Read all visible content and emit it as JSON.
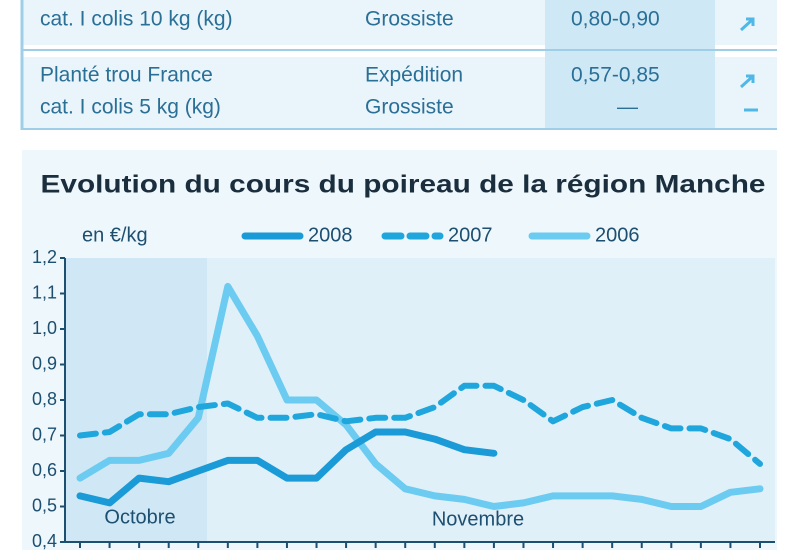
{
  "table": {
    "rows": [
      [
        [
          "cat. I colis 10 kg (kg)"
        ],
        [
          "Grossiste"
        ],
        [
          "0,80-0,90"
        ]
      ],
      [
        [
          "Planté trou France",
          "cat. I colis 5 kg (kg)"
        ],
        [
          "Expédition",
          "Grossiste"
        ],
        [
          "0,57-0,85",
          "—"
        ]
      ]
    ]
  },
  "chart_data": {
    "type": "line",
    "title": "Evolution du cours du poireau de la région Manche",
    "ylabel": "en €/kg",
    "categories": [
      null,
      null,
      null,
      null,
      null,
      null,
      null,
      null,
      null,
      null,
      null,
      null,
      null,
      null,
      null,
      null,
      null,
      null,
      null,
      null,
      null,
      null,
      null,
      null
    ],
    "series": [
      {
        "name": "2008",
        "color": "#1a9ad6",
        "dash": false,
        "values": [
          0.53,
          0.51,
          0.58,
          0.57,
          0.6,
          0.63,
          0.63,
          0.58,
          0.58,
          0.66,
          0.71,
          0.71,
          0.69,
          0.66,
          0.65,
          null,
          null,
          null,
          null,
          null,
          null,
          null,
          null,
          null
        ]
      },
      {
        "name": "2007",
        "color": "#1fa6dc",
        "dash": true,
        "values": [
          0.7,
          0.71,
          0.76,
          0.76,
          0.78,
          0.79,
          0.75,
          0.75,
          0.76,
          0.74,
          0.75,
          0.75,
          0.78,
          0.84,
          0.84,
          0.8,
          0.74,
          0.78,
          0.8,
          0.75,
          0.72,
          0.72,
          0.69,
          0.62
        ]
      },
      {
        "name": "2006",
        "color": "#6ccbf0",
        "dash": false,
        "values": [
          0.58,
          0.63,
          0.63,
          0.65,
          0.75,
          1.12,
          0.98,
          0.8,
          0.8,
          0.73,
          0.62,
          0.55,
          0.53,
          0.52,
          0.5,
          0.51,
          0.53,
          0.53,
          0.53,
          0.52,
          0.5,
          0.5,
          0.54,
          0.55
        ]
      }
    ],
    "ylim": [
      0.4,
      1.2
    ],
    "yticks": [
      {
        "value": 0.4,
        "label": "0,4"
      },
      {
        "value": 0.5,
        "label": "0,5"
      },
      {
        "value": 0.6,
        "label": "0,6"
      },
      {
        "value": 0.7,
        "label": "0,7"
      },
      {
        "value": 0.8,
        "label": "0,8"
      },
      {
        "value": 0.9,
        "label": "0,9"
      },
      {
        "value": 1.0,
        "label": "1,0"
      },
      {
        "value": 1.1,
        "label": "1,1"
      },
      {
        "value": 1.2,
        "label": "1,2"
      }
    ],
    "annotations": [
      {
        "text": "Octobre"
      },
      {
        "text": "Novembre"
      }
    ]
  }
}
